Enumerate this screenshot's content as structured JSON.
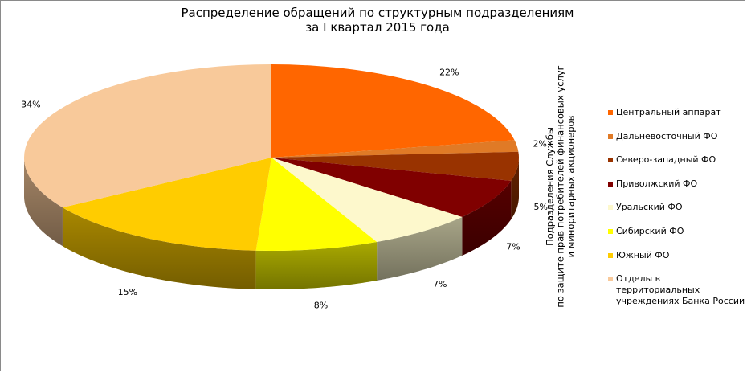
{
  "chart_data": {
    "type": "pie",
    "title_lines": [
      "Распределение обращений по структурным подразделениям",
      "за I квартал 2015 года"
    ],
    "axis_note_lines": [
      "Подразделения Службы",
      "по защите прав потребителей финансовых  услуг",
      "и миноритарных акционеров"
    ],
    "legend_position": "right",
    "slices": [
      {
        "name": "Центральный аппарат",
        "value": 22,
        "label": "22%",
        "color": "#ff6600"
      },
      {
        "name": "Дальневосточный ФО",
        "value": 2,
        "label": "2%",
        "color": "#e07a26"
      },
      {
        "name": "Северо-западный ФО",
        "value": 5,
        "label": "5%",
        "color": "#993300"
      },
      {
        "name": "Приволжский ФО",
        "value": 7,
        "label": "7%",
        "color": "#800000"
      },
      {
        "name": "Уральский ФО",
        "value": 7,
        "label": "7%",
        "color": "#fdf8cc"
      },
      {
        "name": "Сибирский ФО",
        "value": 8,
        "label": "8%",
        "color": "#ffff00"
      },
      {
        "name": "Южный ФО",
        "value": 15,
        "label": "15%",
        "color": "#ffcc00"
      },
      {
        "name": "Отделы в территориальных учреждениях Банка России",
        "value": 34,
        "label": "34%",
        "color": "#f8c99a"
      }
    ]
  }
}
